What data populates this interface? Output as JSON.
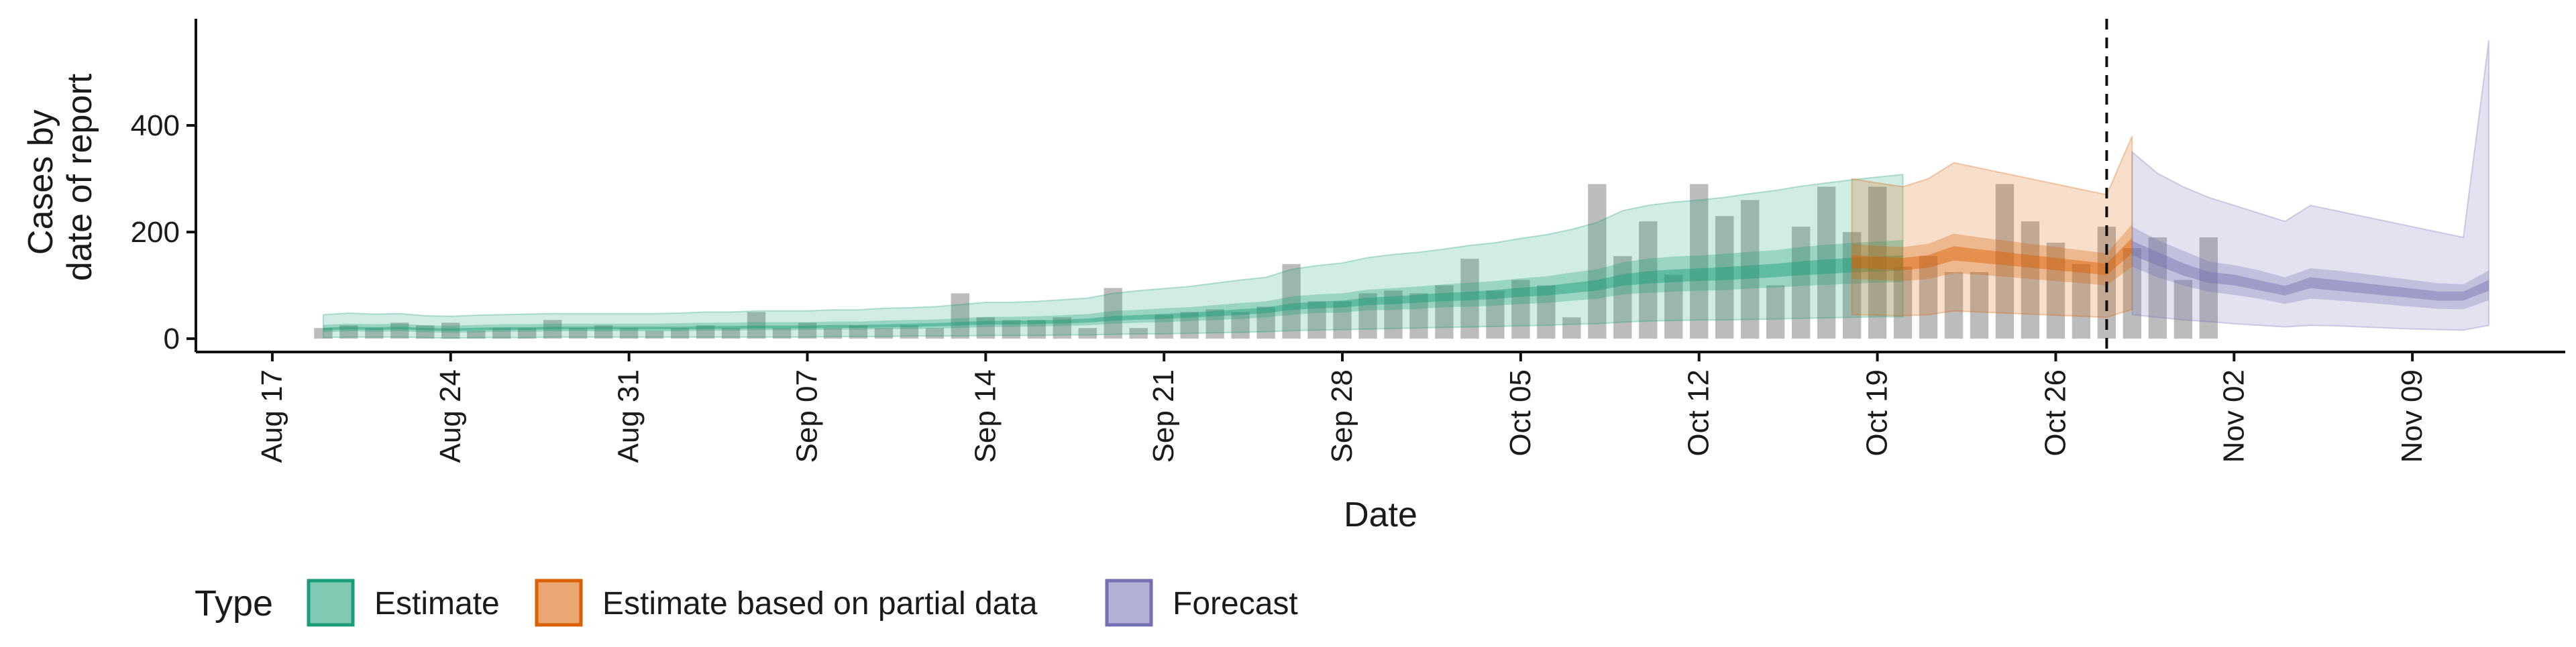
{
  "chart_data": {
    "type": "area",
    "title": "",
    "xlabel": "Date",
    "ylabel_lines": [
      "Cases by",
      "date of report"
    ],
    "x_domain": [
      "2020-08-14",
      "2020-11-15"
    ],
    "ylim": [
      -25,
      600
    ],
    "yticks": [
      0,
      200,
      400
    ],
    "xticks": [
      {
        "date": "2020-08-17",
        "label": "Aug 17"
      },
      {
        "date": "2020-08-24",
        "label": "Aug 24"
      },
      {
        "date": "2020-08-31",
        "label": "Aug 31"
      },
      {
        "date": "2020-09-07",
        "label": "Sep 07"
      },
      {
        "date": "2020-09-14",
        "label": "Sep 14"
      },
      {
        "date": "2020-09-21",
        "label": "Sep 21"
      },
      {
        "date": "2020-09-28",
        "label": "Sep 28"
      },
      {
        "date": "2020-10-05",
        "label": "Oct 05"
      },
      {
        "date": "2020-10-12",
        "label": "Oct 12"
      },
      {
        "date": "2020-10-19",
        "label": "Oct 19"
      },
      {
        "date": "2020-10-26",
        "label": "Oct 26"
      },
      {
        "date": "2020-11-02",
        "label": "Nov 02"
      },
      {
        "date": "2020-11-09",
        "label": "Nov 09"
      }
    ],
    "reference_line_date": "2020-10-28",
    "bars": {
      "color": "#a6a6a6",
      "start_date": "2020-08-19",
      "values": [
        20,
        25,
        20,
        30,
        25,
        30,
        15,
        20,
        20,
        35,
        20,
        25,
        20,
        15,
        20,
        25,
        20,
        50,
        20,
        30,
        20,
        25,
        20,
        25,
        20,
        85,
        40,
        35,
        35,
        40,
        20,
        95,
        20,
        45,
        50,
        55,
        50,
        60,
        140,
        70,
        70,
        85,
        90,
        85,
        100,
        150,
        90,
        110,
        100,
        40,
        290,
        155,
        220,
        120,
        290,
        230,
        260,
        100,
        210,
        285,
        200,
        285,
        135,
        155,
        125,
        125,
        290,
        220,
        180,
        140,
        210,
        170,
        190,
        110,
        190
      ]
    },
    "series": [
      {
        "name": "Estimate",
        "color": "#1b9e77",
        "start_date": "2020-08-19",
        "median": [
          18,
          20,
          19,
          20,
          18,
          17,
          18,
          19,
          19,
          20,
          20,
          20,
          20,
          20,
          20,
          21,
          21,
          22,
          22,
          22,
          23,
          23,
          24,
          25,
          26,
          28,
          30,
          30,
          31,
          32,
          34,
          38,
          40,
          42,
          44,
          47,
          50,
          53,
          60,
          63,
          65,
          70,
          72,
          75,
          78,
          80,
          83,
          87,
          90,
          95,
          100,
          110,
          115,
          118,
          120,
          122,
          125,
          128,
          132,
          135,
          138,
          140,
          142
        ],
        "inner": [
          [
            12,
            26
          ],
          [
            14,
            28
          ],
          [
            13,
            27
          ],
          [
            14,
            28
          ],
          [
            12,
            25
          ],
          [
            11,
            24
          ],
          [
            12,
            26
          ],
          [
            13,
            27
          ],
          [
            13,
            27
          ],
          [
            14,
            28
          ],
          [
            14,
            28
          ],
          [
            14,
            28
          ],
          [
            14,
            28
          ],
          [
            14,
            28
          ],
          [
            14,
            29
          ],
          [
            15,
            30
          ],
          [
            15,
            30
          ],
          [
            16,
            31
          ],
          [
            16,
            31
          ],
          [
            16,
            31
          ],
          [
            17,
            32
          ],
          [
            17,
            32
          ],
          [
            18,
            34
          ],
          [
            18,
            35
          ],
          [
            19,
            36
          ],
          [
            20,
            38
          ],
          [
            22,
            41
          ],
          [
            22,
            41
          ],
          [
            23,
            42
          ],
          [
            24,
            44
          ],
          [
            25,
            46
          ],
          [
            28,
            52
          ],
          [
            30,
            54
          ],
          [
            31,
            57
          ],
          [
            33,
            59
          ],
          [
            35,
            63
          ],
          [
            37,
            67
          ],
          [
            40,
            70
          ],
          [
            45,
            79
          ],
          [
            48,
            83
          ],
          [
            49,
            85
          ],
          [
            53,
            92
          ],
          [
            54,
            95
          ],
          [
            56,
            98
          ],
          [
            59,
            102
          ],
          [
            60,
            105
          ],
          [
            62,
            108
          ],
          [
            65,
            113
          ],
          [
            67,
            117
          ],
          [
            71,
            124
          ],
          [
            75,
            130
          ],
          [
            83,
            143
          ],
          [
            86,
            150
          ],
          [
            88,
            154
          ],
          [
            90,
            156
          ],
          [
            91,
            159
          ],
          [
            94,
            163
          ],
          [
            96,
            166
          ],
          [
            99,
            172
          ],
          [
            101,
            176
          ],
          [
            103,
            180
          ],
          [
            105,
            182
          ],
          [
            106,
            185
          ]
        ],
        "outer": [
          [
            2,
            45
          ],
          [
            3,
            48
          ],
          [
            3,
            46
          ],
          [
            3,
            47
          ],
          [
            2,
            43
          ],
          [
            1,
            42
          ],
          [
            2,
            44
          ],
          [
            2,
            45
          ],
          [
            2,
            46
          ],
          [
            3,
            47
          ],
          [
            3,
            47
          ],
          [
            3,
            47
          ],
          [
            3,
            47
          ],
          [
            3,
            47
          ],
          [
            3,
            48
          ],
          [
            3,
            50
          ],
          [
            3,
            50
          ],
          [
            3,
            52
          ],
          [
            3,
            52
          ],
          [
            3,
            52
          ],
          [
            4,
            54
          ],
          [
            4,
            54
          ],
          [
            4,
            57
          ],
          [
            5,
            58
          ],
          [
            5,
            60
          ],
          [
            5,
            64
          ],
          [
            6,
            68
          ],
          [
            6,
            68
          ],
          [
            6,
            70
          ],
          [
            7,
            73
          ],
          [
            7,
            76
          ],
          [
            8,
            85
          ],
          [
            9,
            90
          ],
          [
            9,
            94
          ],
          [
            10,
            98
          ],
          [
            11,
            104
          ],
          [
            12,
            110
          ],
          [
            13,
            115
          ],
          [
            15,
            130
          ],
          [
            16,
            137
          ],
          [
            17,
            142
          ],
          [
            18,
            152
          ],
          [
            19,
            158
          ],
          [
            20,
            162
          ],
          [
            21,
            168
          ],
          [
            22,
            175
          ],
          [
            23,
            180
          ],
          [
            24,
            188
          ],
          [
            25,
            195
          ],
          [
            27,
            205
          ],
          [
            28,
            218
          ],
          [
            31,
            240
          ],
          [
            33,
            250
          ],
          [
            34,
            256
          ],
          [
            35,
            260
          ],
          [
            35,
            265
          ],
          [
            36,
            272
          ],
          [
            37,
            278
          ],
          [
            38,
            286
          ],
          [
            39,
            292
          ],
          [
            40,
            298
          ],
          [
            41,
            303
          ],
          [
            41,
            308
          ]
        ]
      },
      {
        "name": "Estimate based on partial data",
        "color": "#d95f02",
        "start_date": "2020-10-18",
        "median": [
          145,
          142,
          140,
          145,
          160,
          155,
          150,
          145,
          140,
          135,
          130,
          175
        ],
        "inner": [
          [
            112,
            178
          ],
          [
            110,
            174
          ],
          [
            108,
            172
          ],
          [
            112,
            178
          ],
          [
            123,
            197
          ],
          [
            120,
            190
          ],
          [
            116,
            184
          ],
          [
            112,
            178
          ],
          [
            108,
            172
          ],
          [
            104,
            166
          ],
          [
            100,
            160
          ],
          [
            135,
            215
          ]
        ],
        "outer": [
          [
            45,
            300
          ],
          [
            44,
            292
          ],
          [
            43,
            285
          ],
          [
            45,
            300
          ],
          [
            52,
            330
          ],
          [
            50,
            320
          ],
          [
            48,
            310
          ],
          [
            46,
            300
          ],
          [
            44,
            290
          ],
          [
            42,
            280
          ],
          [
            40,
            270
          ],
          [
            55,
            380
          ]
        ]
      },
      {
        "name": "Forecast",
        "color": "#7570b3",
        "start_date": "2020-10-29",
        "median": [
          170,
          150,
          130,
          115,
          110,
          100,
          90,
          105,
          100,
          95,
          90,
          85,
          80,
          80,
          100
        ],
        "inner": [
          [
            135,
            210
          ],
          [
            115,
            185
          ],
          [
            100,
            165
          ],
          [
            88,
            145
          ],
          [
            82,
            138
          ],
          [
            75,
            128
          ],
          [
            65,
            115
          ],
          [
            75,
            132
          ],
          [
            72,
            128
          ],
          [
            68,
            122
          ],
          [
            64,
            116
          ],
          [
            60,
            110
          ],
          [
            56,
            104
          ],
          [
            55,
            102
          ],
          [
            72,
            128
          ]
        ],
        "outer": [
          [
            45,
            350
          ],
          [
            40,
            310
          ],
          [
            35,
            285
          ],
          [
            32,
            265
          ],
          [
            28,
            250
          ],
          [
            25,
            235
          ],
          [
            22,
            220
          ],
          [
            25,
            250
          ],
          [
            24,
            240
          ],
          [
            22,
            230
          ],
          [
            20,
            220
          ],
          [
            18,
            210
          ],
          [
            17,
            200
          ],
          [
            16,
            190
          ],
          [
            25,
            560
          ]
        ]
      }
    ],
    "legend": {
      "title": "Type",
      "position": "bottom",
      "items": [
        "Estimate",
        "Estimate based on partial data",
        "Forecast"
      ]
    },
    "grid": false
  }
}
